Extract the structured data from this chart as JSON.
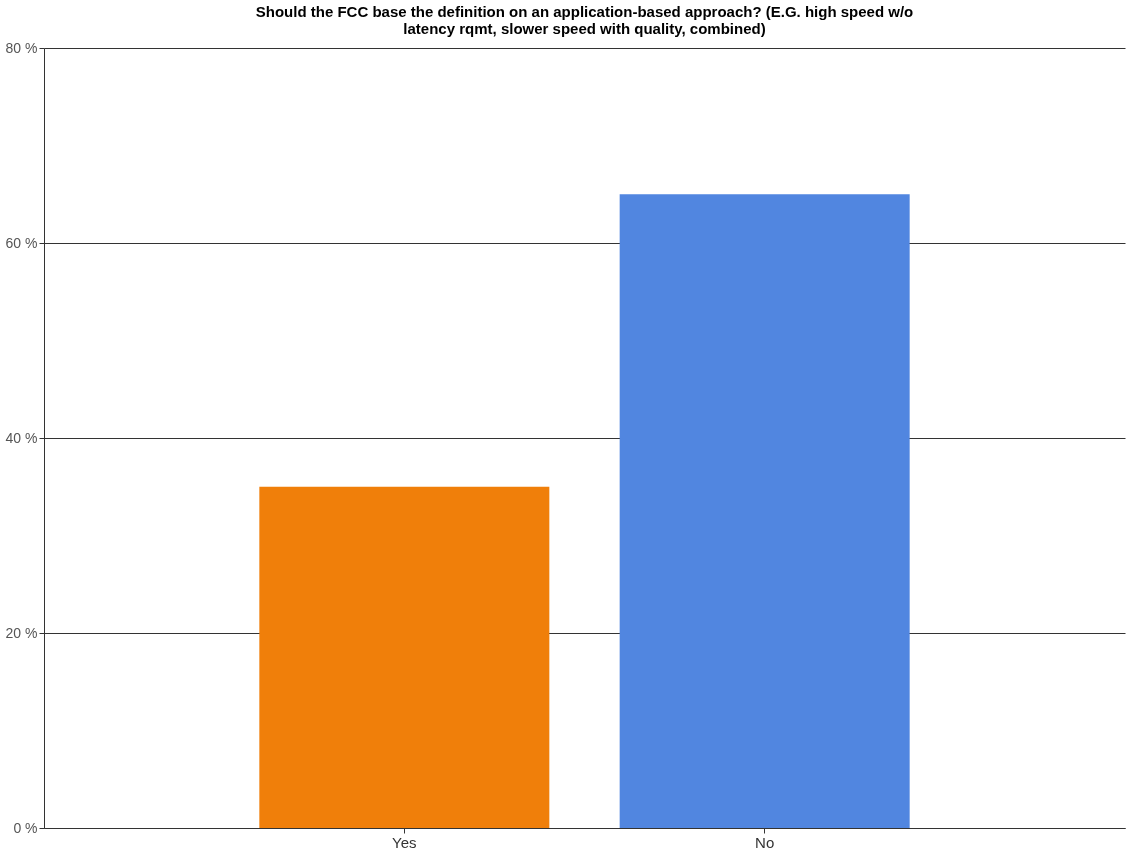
{
  "chart_data": {
    "type": "bar",
    "title": "Should the FCC base the definition on an application-based approach? (E.G. high speed w/o latency rqmt, slower speed with quality, combined)",
    "categories": [
      "Yes",
      "No"
    ],
    "values": [
      35,
      65
    ],
    "colors": [
      "#f07f0a",
      "#5186e0"
    ],
    "ylim": [
      0,
      80
    ],
    "yticks": [
      {
        "value": 0,
        "label": "0 %"
      },
      {
        "value": 20,
        "label": "20 %"
      },
      {
        "value": 40,
        "label": "40 %"
      },
      {
        "value": 60,
        "label": "60 %"
      },
      {
        "value": 80,
        "label": "80 %"
      }
    ],
    "grid": "y"
  }
}
